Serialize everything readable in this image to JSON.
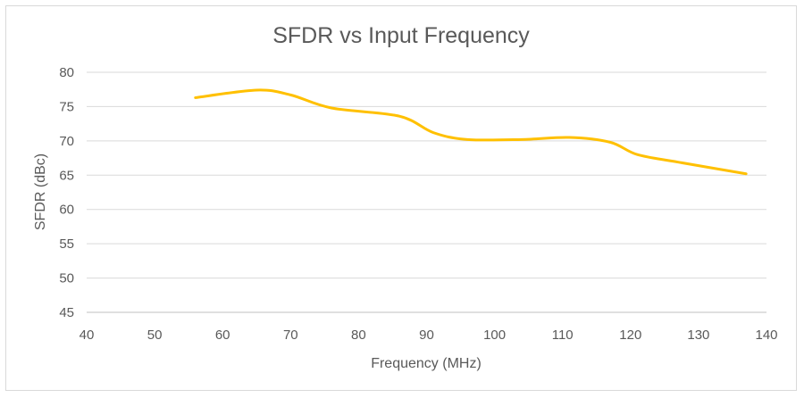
{
  "chart_data": {
    "type": "line",
    "title": "SFDR vs Input Frequency",
    "xlabel": "Frequency (MHz)",
    "ylabel": "SFDR (dBc)",
    "xlim": [
      40,
      140
    ],
    "ylim": [
      45,
      80
    ],
    "xticks": [
      40,
      50,
      60,
      70,
      80,
      90,
      100,
      110,
      120,
      130,
      140
    ],
    "yticks": [
      45,
      50,
      55,
      60,
      65,
      70,
      75,
      80
    ],
    "grid": true,
    "legend": "none",
    "series": [
      {
        "color": "#FFC000",
        "x": [
          56,
          65,
          70,
          76,
          86,
          91,
          96,
          104,
          111,
          117,
          121,
          127,
          137
        ],
        "y": [
          76.3,
          77.4,
          76.7,
          74.8,
          73.6,
          71.2,
          70.2,
          70.2,
          70.5,
          69.8,
          68.0,
          66.9,
          65.2
        ]
      }
    ]
  }
}
